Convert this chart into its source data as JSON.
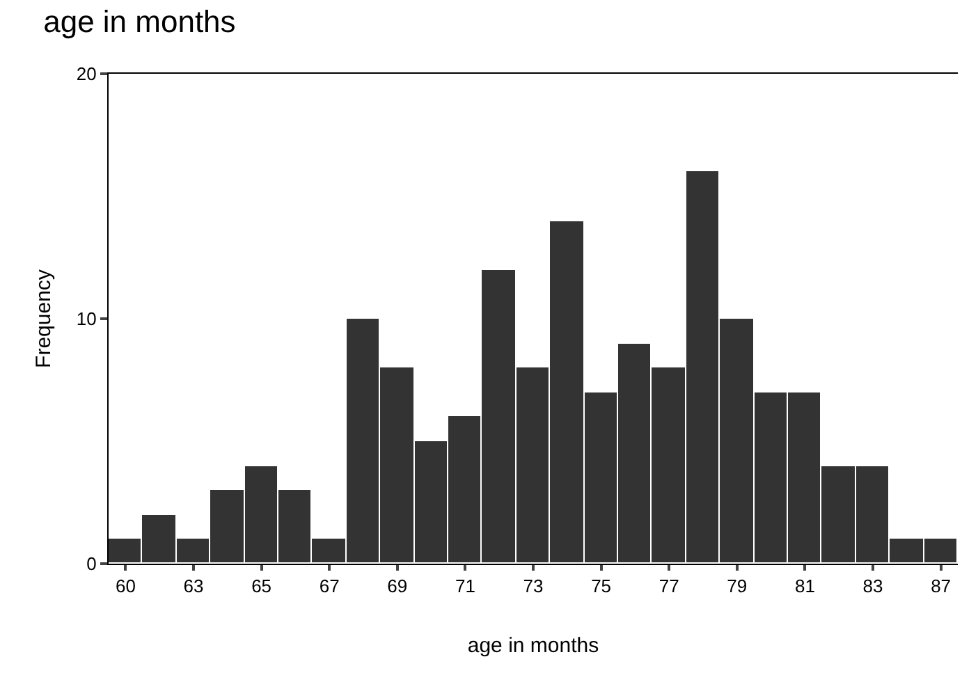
{
  "chart_data": {
    "type": "bar",
    "title": "age in months",
    "xlabel": "age in months",
    "ylabel": "Frequency",
    "categories": [
      "60",
      null,
      "63",
      null,
      "65",
      null,
      "67",
      null,
      "69",
      null,
      "71",
      null,
      "73",
      null,
      "75",
      null,
      "77",
      null,
      "79",
      null,
      "81",
      null,
      "83",
      null,
      "87"
    ],
    "values": [
      1,
      2,
      1,
      3,
      4,
      3,
      1,
      10,
      8,
      5,
      6,
      12,
      8,
      14,
      7,
      9,
      8,
      16,
      10,
      7,
      7,
      4,
      4,
      1,
      1
    ],
    "color": "#333333",
    "ylim": [
      0,
      20
    ],
    "yticks": [
      0,
      10,
      20
    ],
    "grid": false,
    "legend": false
  }
}
